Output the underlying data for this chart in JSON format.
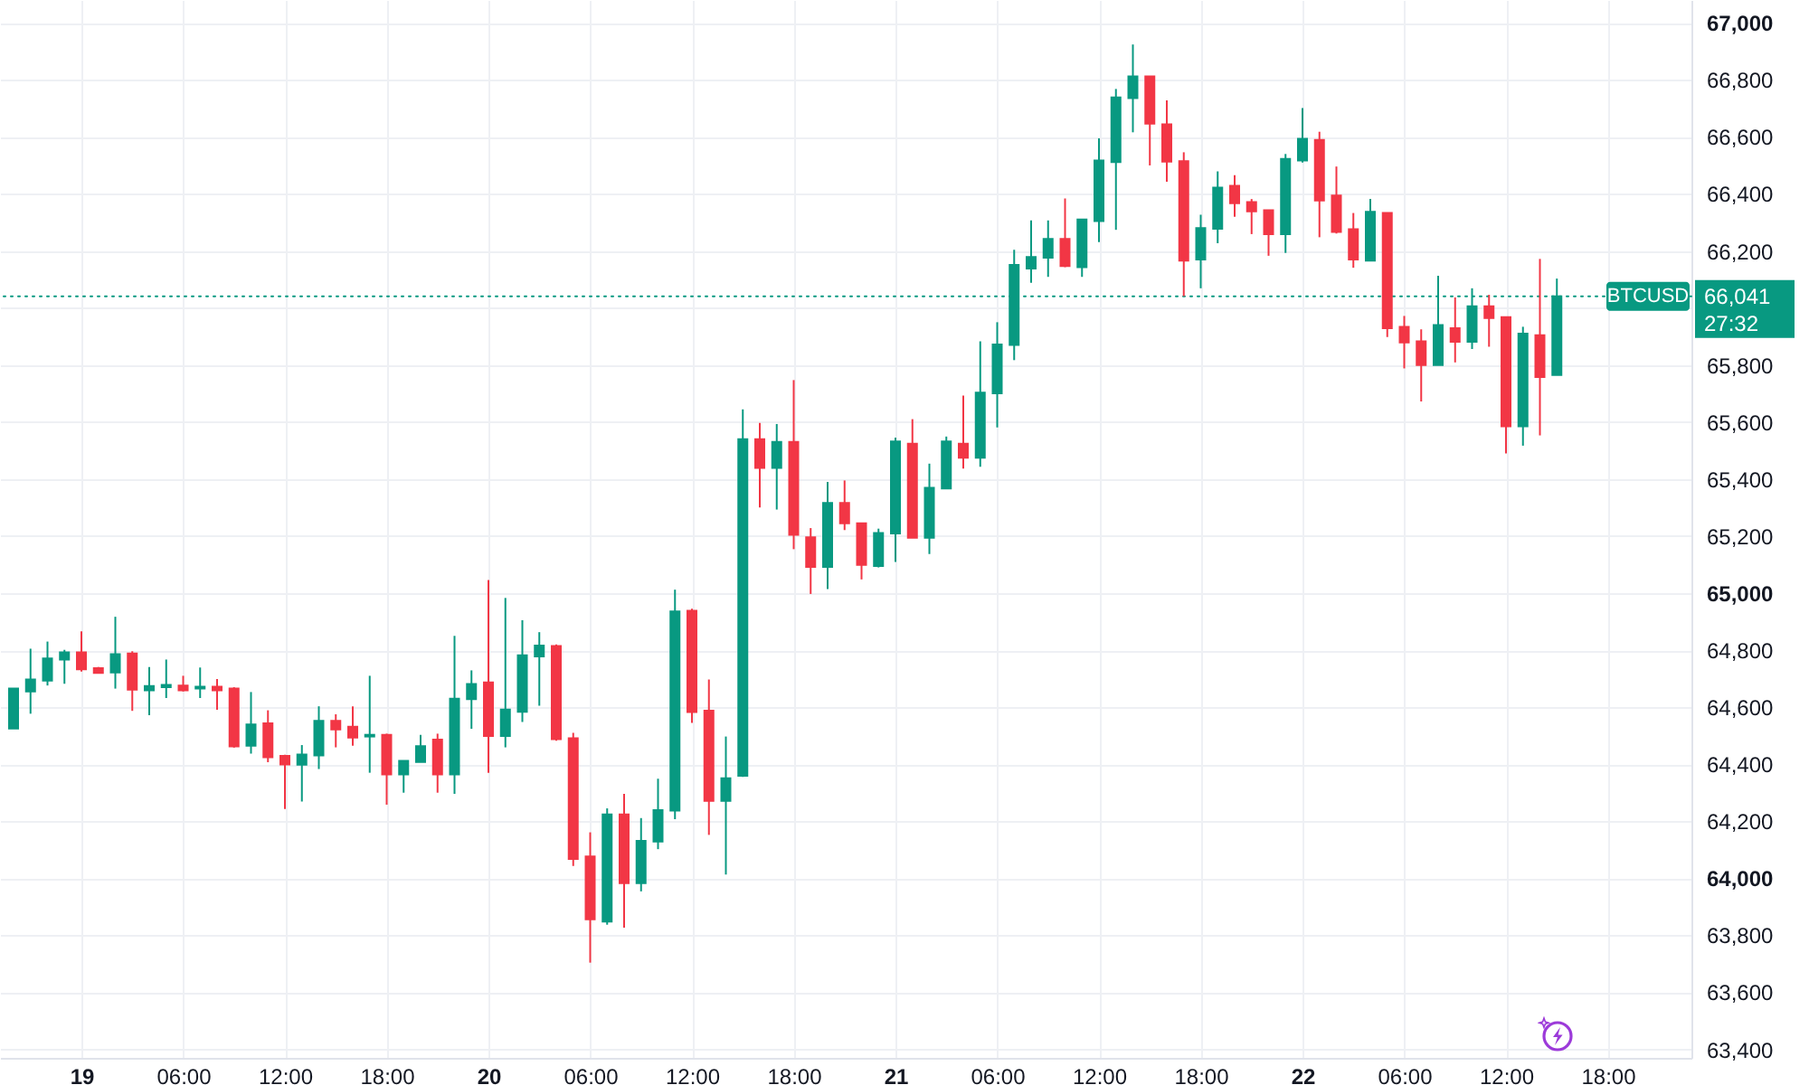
{
  "chart_data": {
    "type": "candlestick",
    "x": [
      "--07-18T20:00",
      "--07-18T21:00",
      "--07-18T22:00",
      "--07-18T23:00",
      "--07-19T00:00",
      "--07-19T01:00",
      "--07-19T02:00",
      "--07-19T03:00",
      "--07-19T04:00",
      "--07-19T05:00",
      "--07-19T06:00",
      "--07-19T07:00",
      "--07-19T08:00",
      "--07-19T09:00",
      "--07-19T10:00",
      "--07-19T11:00",
      "--07-19T12:00",
      "--07-19T13:00",
      "--07-19T14:00",
      "--07-19T15:00",
      "--07-19T16:00",
      "--07-19T17:00",
      "--07-19T18:00",
      "--07-19T19:00",
      "--07-19T20:00",
      "--07-19T21:00",
      "--07-19T22:00",
      "--07-19T23:00",
      "--07-20T00:00",
      "--07-20T01:00",
      "--07-20T02:00",
      "--07-20T03:00",
      "--07-20T04:00",
      "--07-20T05:00",
      "--07-20T06:00",
      "--07-20T07:00",
      "--07-20T08:00",
      "--07-20T09:00",
      "--07-20T10:00",
      "--07-20T11:00",
      "--07-20T12:00",
      "--07-20T13:00",
      "--07-20T14:00",
      "--07-20T15:00",
      "--07-20T16:00",
      "--07-20T17:00",
      "--07-20T18:00",
      "--07-20T19:00",
      "--07-20T20:00",
      "--07-20T21:00",
      "--07-20T22:00",
      "--07-20T23:00",
      "--07-21T00:00",
      "--07-21T01:00",
      "--07-21T02:00",
      "--07-21T03:00",
      "--07-21T04:00",
      "--07-21T05:00",
      "--07-21T06:00",
      "--07-21T07:00",
      "--07-21T08:00",
      "--07-21T09:00",
      "--07-21T10:00",
      "--07-21T11:00",
      "--07-21T12:00",
      "--07-21T13:00",
      "--07-21T14:00",
      "--07-21T15:00",
      "--07-21T16:00",
      "--07-21T17:00",
      "--07-21T18:00",
      "--07-21T19:00",
      "--07-21T20:00",
      "--07-21T21:00",
      "--07-21T22:00",
      "--07-21T23:00",
      "--07-22T00:00",
      "--07-22T01:00",
      "--07-22T02:00",
      "--07-22T03:00",
      "--07-22T04:00",
      "--07-22T05:00",
      "--07-22T06:00",
      "--07-22T07:00",
      "--07-22T08:00",
      "--07-22T09:00",
      "--07-22T10:00",
      "--07-22T11:00",
      "--07-22T12:00",
      "--07-22T13:00",
      "--07-22T14:00",
      "--07-22T15:00"
    ],
    "ohlc": [
      [
        64525,
        64665,
        64525,
        64665
      ],
      [
        64655,
        64805,
        64577,
        64697
      ],
      [
        64693,
        64830,
        64676,
        64771
      ],
      [
        64767,
        64801,
        64682,
        64792
      ],
      [
        64792,
        64866,
        64725,
        64733
      ],
      [
        64737,
        64741,
        64718,
        64720
      ],
      [
        64722,
        64917,
        64665,
        64786
      ],
      [
        64788,
        64796,
        64587,
        64661
      ],
      [
        64659,
        64741,
        64572,
        64674
      ],
      [
        64670,
        64767,
        64632,
        64678
      ],
      [
        64676,
        64710,
        64655,
        64659
      ],
      [
        64665,
        64739,
        64632,
        64672
      ],
      [
        64672,
        64699,
        64591,
        64659
      ],
      [
        64665,
        64670,
        64458,
        64462
      ],
      [
        64465,
        64653,
        64437,
        64539
      ],
      [
        64543,
        64589,
        64407,
        64424
      ],
      [
        64429,
        64433,
        64243,
        64399
      ],
      [
        64398,
        64467,
        64269,
        64434
      ],
      [
        64431,
        64603,
        64383,
        64552
      ],
      [
        64552,
        64575,
        64459,
        64522
      ],
      [
        64531,
        64603,
        64465,
        64493
      ],
      [
        64497,
        64710,
        64370,
        64503
      ],
      [
        64503,
        64507,
        64258,
        64364
      ],
      [
        64364,
        64412,
        64300,
        64412
      ],
      [
        64408,
        64503,
        64408,
        64463
      ],
      [
        64486,
        64507,
        64300,
        64364
      ],
      [
        64364,
        64850,
        64296,
        64630
      ],
      [
        64628,
        64729,
        64524,
        64681
      ],
      [
        64687,
        65046,
        64370,
        64499
      ],
      [
        64499,
        64983,
        64459,
        64592
      ],
      [
        64584,
        64905,
        64548,
        64782
      ],
      [
        64778,
        64863,
        64605,
        64816
      ],
      [
        64814,
        64820,
        64482,
        64488
      ],
      [
        64491,
        64510,
        64043,
        64068
      ],
      [
        64076,
        64161,
        63704,
        63856
      ],
      [
        63848,
        64245,
        63837,
        64224
      ],
      [
        64224,
        64296,
        63827,
        63983
      ],
      [
        63983,
        64211,
        63954,
        64131
      ],
      [
        64129,
        64349,
        64102,
        64239
      ],
      [
        64237,
        65012,
        64207,
        64936
      ],
      [
        64938,
        64945,
        64545,
        64583
      ],
      [
        64588,
        64697,
        64152,
        64271
      ],
      [
        64271,
        64497,
        64013,
        64351
      ],
      [
        64359,
        65644,
        64355,
        65540
      ],
      [
        65540,
        65597,
        65300,
        65439
      ],
      [
        65439,
        65593,
        65293,
        65530
      ],
      [
        65530,
        65747,
        65154,
        65204
      ],
      [
        65196,
        65228,
        64997,
        65092
      ],
      [
        65092,
        65390,
        65014,
        65316
      ],
      [
        65316,
        65395,
        65221,
        65245
      ],
      [
        65245,
        65247,
        65048,
        65099
      ],
      [
        65095,
        65226,
        65090,
        65211
      ],
      [
        65209,
        65545,
        65109,
        65532
      ],
      [
        65524,
        65610,
        65194,
        65194
      ],
      [
        65194,
        65454,
        65137,
        65369
      ],
      [
        65367,
        65549,
        65367,
        65532
      ],
      [
        65524,
        65693,
        65437,
        65475
      ],
      [
        65475,
        65883,
        65443,
        65703
      ],
      [
        65701,
        65950,
        65581,
        65872
      ],
      [
        65870,
        66204,
        65817,
        66151
      ],
      [
        66138,
        66307,
        66088,
        66179
      ],
      [
        66176,
        66307,
        66109,
        66242
      ],
      [
        66242,
        66384,
        66143,
        66147
      ],
      [
        66143,
        66310,
        66109,
        66310
      ],
      [
        66305,
        66595,
        66231,
        66517
      ],
      [
        66512,
        66768,
        66274,
        66738
      ],
      [
        66736,
        66924,
        66616,
        66812
      ],
      [
        66812,
        66812,
        66500,
        66646
      ],
      [
        66644,
        66728,
        66443,
        66513
      ],
      [
        66515,
        66546,
        66041,
        66166
      ],
      [
        66170,
        66327,
        66069,
        66280
      ],
      [
        66278,
        66479,
        66227,
        66422
      ],
      [
        66428,
        66466,
        66320,
        66367
      ],
      [
        66371,
        66382,
        66259,
        66339
      ],
      [
        66343,
        66343,
        66183,
        66259
      ],
      [
        66259,
        66540,
        66193,
        66523
      ],
      [
        66517,
        66701,
        66510,
        66593
      ],
      [
        66589,
        66618,
        66248,
        66377
      ],
      [
        66394,
        66496,
        66261,
        66267
      ],
      [
        66276,
        66333,
        66141,
        66170
      ],
      [
        66166,
        66382,
        66166,
        66337
      ],
      [
        66333,
        66333,
        65898,
        65929
      ],
      [
        65934,
        65972,
        65788,
        65879
      ],
      [
        65883,
        65925,
        65672,
        65800
      ],
      [
        65800,
        66113,
        65800,
        65940
      ],
      [
        65929,
        66037,
        65809,
        65881
      ],
      [
        65881,
        66069,
        65856,
        66006
      ],
      [
        66006,
        66046,
        65864,
        65965
      ],
      [
        65968,
        65968,
        65490,
        65585
      ],
      [
        65585,
        65934,
        65517,
        65910
      ],
      [
        65904,
        66172,
        65553,
        65758
      ],
      [
        65765,
        66103,
        65765,
        66041
      ]
    ],
    "colors": [
      "#089981",
      "#089981",
      "#089981",
      "#089981",
      "#f23645",
      "#f23645",
      "#089981",
      "#f23645",
      "#089981",
      "#089981",
      "#f23645",
      "#089981",
      "#f23645",
      "#f23645",
      "#089981",
      "#f23645",
      "#f23645",
      "#089981",
      "#089981",
      "#f23645",
      "#f23645",
      "#089981",
      "#f23645",
      "#089981",
      "#089981",
      "#f23645",
      "#089981",
      "#089981",
      "#f23645",
      "#089981",
      "#089981",
      "#089981",
      "#f23645",
      "#f23645",
      "#f23645",
      "#089981",
      "#f23645",
      "#089981",
      "#089981",
      "#089981",
      "#f23645",
      "#f23645",
      "#089981",
      "#089981",
      "#f23645",
      "#089981",
      "#f23645",
      "#f23645",
      "#089981",
      "#f23645",
      "#f23645",
      "#089981",
      "#089981",
      "#f23645",
      "#089981",
      "#089981",
      "#f23645",
      "#089981",
      "#089981",
      "#089981",
      "#089981",
      "#089981",
      "#f23645",
      "#089981",
      "#089981",
      "#089981",
      "#089981",
      "#f23645",
      "#f23645",
      "#f23645",
      "#089981",
      "#089981",
      "#f23645",
      "#f23645",
      "#f23645",
      "#089981",
      "#089981",
      "#f23645",
      "#f23645",
      "#f23645",
      "#089981",
      "#f23645",
      "#f23645",
      "#f23645",
      "#089981",
      "#f23645",
      "#089981",
      "#f23645",
      "#f23645",
      "#089981",
      "#f23645",
      "#089981"
    ],
    "xlim": [
      "--07-18T19:12",
      "--07-22T22:56"
    ],
    "xticks": [
      {
        "value": "--07-19T00:00",
        "label": "19"
      },
      {
        "value": "--07-19T06:00",
        "label": "06:00"
      },
      {
        "value": "--07-19T12:00",
        "label": "12:00"
      },
      {
        "value": "--07-19T18:00",
        "label": "18:00"
      },
      {
        "value": "--07-20T00:00",
        "label": "20"
      },
      {
        "value": "--07-20T06:00",
        "label": "06:00"
      },
      {
        "value": "--07-20T12:00",
        "label": "12:00"
      },
      {
        "value": "--07-20T18:00",
        "label": "18:00"
      },
      {
        "value": "--07-21T00:00",
        "label": "21"
      },
      {
        "value": "--07-21T06:00",
        "label": "06:00"
      },
      {
        "value": "--07-21T12:00",
        "label": "12:00"
      },
      {
        "value": "--07-21T18:00",
        "label": "18:00"
      },
      {
        "value": "--07-22T00:00",
        "label": "22"
      },
      {
        "value": "--07-22T06:00",
        "label": "06:00"
      },
      {
        "value": "--07-22T12:00",
        "label": "12:00"
      },
      {
        "value": "--07-22T18:00",
        "label": "18:00"
      }
    ],
    "ylim": [
      63370,
      67080
    ],
    "yticks": [
      {
        "value": 63400,
        "label": "63,400"
      },
      {
        "value": 63600,
        "label": "63,600"
      },
      {
        "value": 63800,
        "label": "63,800"
      },
      {
        "value": 64000,
        "label": "64,000"
      },
      {
        "value": 64200,
        "label": "64,200"
      },
      {
        "value": 64400,
        "label": "64,400"
      },
      {
        "value": 64600,
        "label": "64,600"
      },
      {
        "value": 64800,
        "label": "64,800"
      },
      {
        "value": 65000,
        "label": "65,000"
      },
      {
        "value": 65200,
        "label": "65,200"
      },
      {
        "value": 65400,
        "label": "65,400"
      },
      {
        "value": 65600,
        "label": "65,600"
      },
      {
        "value": 65800,
        "label": "65,800"
      },
      {
        "value": 66000,
        "label": null
      },
      {
        "value": 66200,
        "label": "66,200"
      },
      {
        "value": 66400,
        "label": "66,400"
      },
      {
        "value": 66600,
        "label": "66,600"
      },
      {
        "value": 66800,
        "label": "66,800"
      },
      {
        "value": 67000,
        "label": "67,000"
      }
    ],
    "grid": true,
    "ref_lines": [
      {
        "axis": "y",
        "value": 66041,
        "label": "BTCUSD",
        "color": "#089981",
        "line_style": "dotted"
      }
    ],
    "annotations": [
      "66,041",
      "27:32"
    ]
  }
}
